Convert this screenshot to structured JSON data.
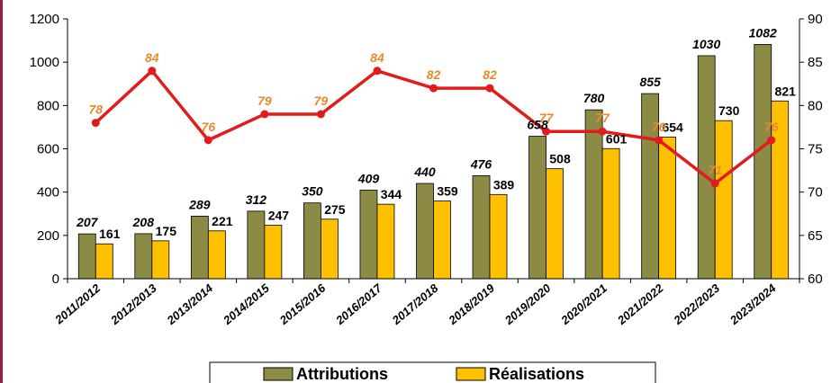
{
  "chart_data": {
    "type": "bar",
    "categories": [
      "2011/2012",
      "2012/2013",
      "2013/2014",
      "2014/2015",
      "2015/2016",
      "2016/2017",
      "2017/2018",
      "2018/2019",
      "2019/2020",
      "2020/2021",
      "2021/2022",
      "2022/2023",
      "2023/2024"
    ],
    "series": [
      {
        "name": "Attributions",
        "type": "bar",
        "axis": "left",
        "color": "#8b8b45",
        "values": [
          207,
          208,
          289,
          312,
          350,
          409,
          440,
          476,
          658,
          780,
          855,
          1030,
          1082
        ]
      },
      {
        "name": "Réalisations",
        "type": "bar",
        "axis": "left",
        "color": "#ffc000",
        "values": [
          161,
          175,
          221,
          247,
          275,
          344,
          359,
          389,
          508,
          601,
          654,
          730,
          821
        ]
      },
      {
        "type": "line",
        "axis": "right",
        "color": "#e21b1b",
        "label_color": "#e8892a",
        "values": [
          78,
          84,
          76,
          79,
          79,
          84,
          82,
          82,
          77,
          77,
          76,
          71,
          76
        ]
      }
    ],
    "ylim": [
      0,
      1200
    ],
    "yticks": [
      0,
      200,
      400,
      600,
      800,
      1000,
      1200
    ],
    "y2lim": [
      60,
      90
    ],
    "y2ticks": [
      60,
      65,
      70,
      75,
      80,
      85,
      90
    ],
    "grid": false,
    "legend": "bottom",
    "legend_entries": [
      "Attributions",
      "Réalisations"
    ]
  }
}
